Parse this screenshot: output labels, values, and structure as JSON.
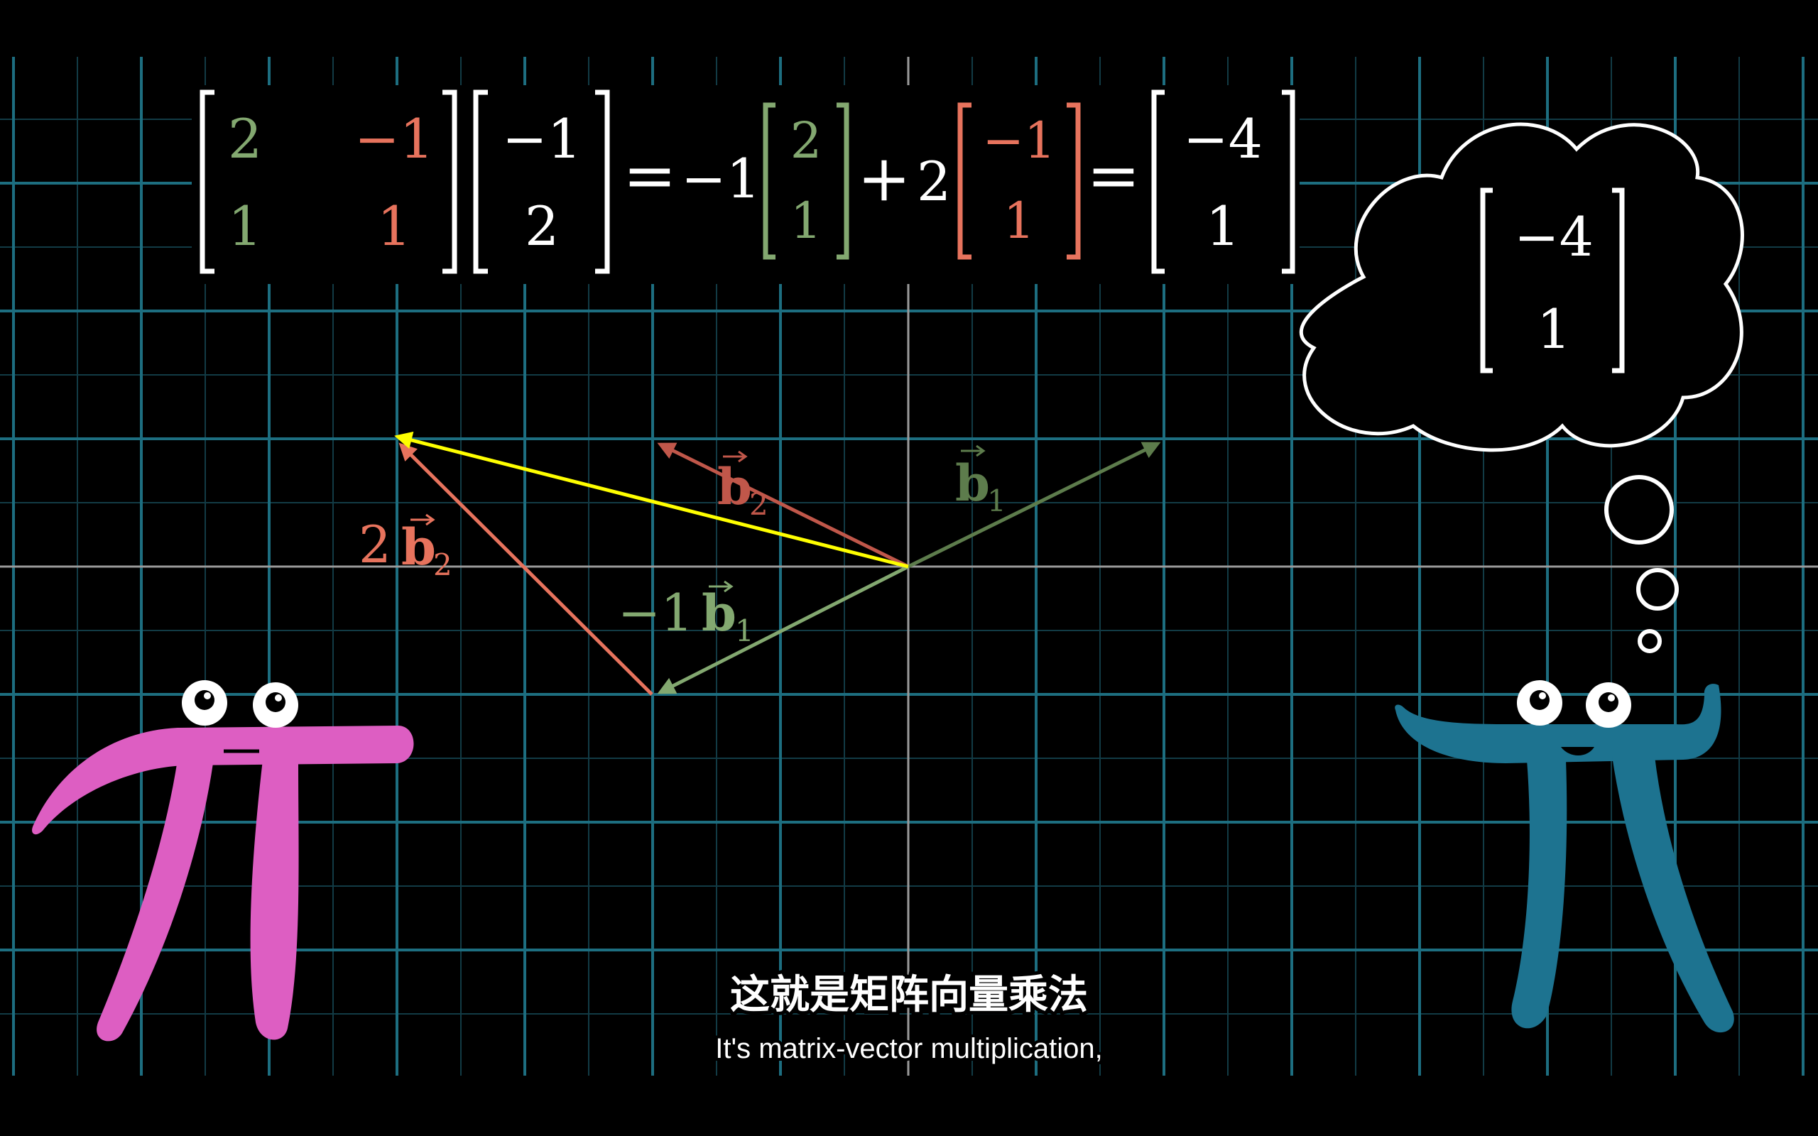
{
  "equation": {
    "matrix": {
      "a": "2",
      "b": "−1",
      "c": "1",
      "d": "1"
    },
    "input_vector": {
      "x": "−1",
      "y": "2"
    },
    "equals_1": "=",
    "coef_1": "−1",
    "b1_vector": {
      "x": "2",
      "y": "1"
    },
    "plus": "+",
    "coef_2": "2",
    "b2_vector": {
      "x": "−1",
      "y": "1"
    },
    "equals_2": "=",
    "result_vector": {
      "x": "−4",
      "y": "1"
    }
  },
  "thought": {
    "x": "−4",
    "y": "1"
  },
  "labels": {
    "b2_base": "b",
    "b2_sub": "2",
    "b1_base": "b",
    "b1_sub": "1",
    "two_b2_coef": "2",
    "two_b2_base": "b",
    "two_b2_sub": "2",
    "neg_b1_coef": "−1",
    "neg_b1_base": "b",
    "neg_b1_sub": "1"
  },
  "subtitle": {
    "chinese": "这就是矩阵向量乘法",
    "english": "It's matrix-vector multiplication,"
  },
  "colors": {
    "green": "#83a870",
    "red": "#e7735d",
    "yellow": "#ffff00",
    "grid": "#1d6e80",
    "pink": "#dd5ec2",
    "blue": "#1d7390"
  }
}
